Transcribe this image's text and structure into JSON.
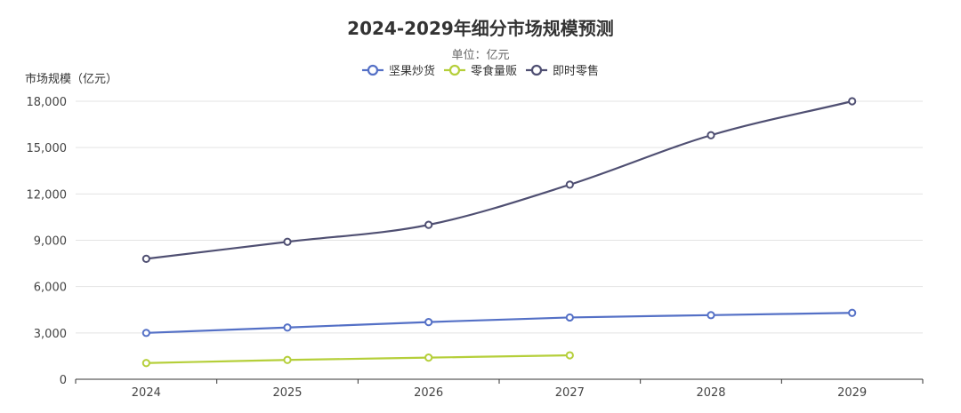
{
  "chart_data": {
    "type": "line",
    "title": "2024-2029年细分市场规模预测",
    "subtitle": "单位：亿元",
    "ylabel": "市场规模（亿元）",
    "xlabel": "",
    "categories": [
      "2024",
      "2025",
      "2026",
      "2027",
      "2028",
      "2029"
    ],
    "ylim": [
      0,
      18000
    ],
    "yticks": [
      0,
      3000,
      6000,
      9000,
      12000,
      15000,
      18000
    ],
    "ytick_labels": [
      "0",
      "3,000",
      "6,000",
      "9,000",
      "12,000",
      "15,000",
      "18,000"
    ],
    "grid": true,
    "legend_position": "top-center",
    "smooth": true,
    "series": [
      {
        "name": "坚果炒货",
        "color": "#5470c6",
        "values": [
          3000,
          3350,
          3700,
          4000,
          4150,
          4300
        ]
      },
      {
        "name": "零食量贩",
        "color": "#b5cf3a",
        "values": [
          1050,
          1250,
          1400,
          1550,
          null,
          null
        ]
      },
      {
        "name": "即时零售",
        "color": "#4f4f72",
        "values": [
          7800,
          8900,
          10000,
          12600,
          15800,
          18000
        ]
      }
    ]
  }
}
